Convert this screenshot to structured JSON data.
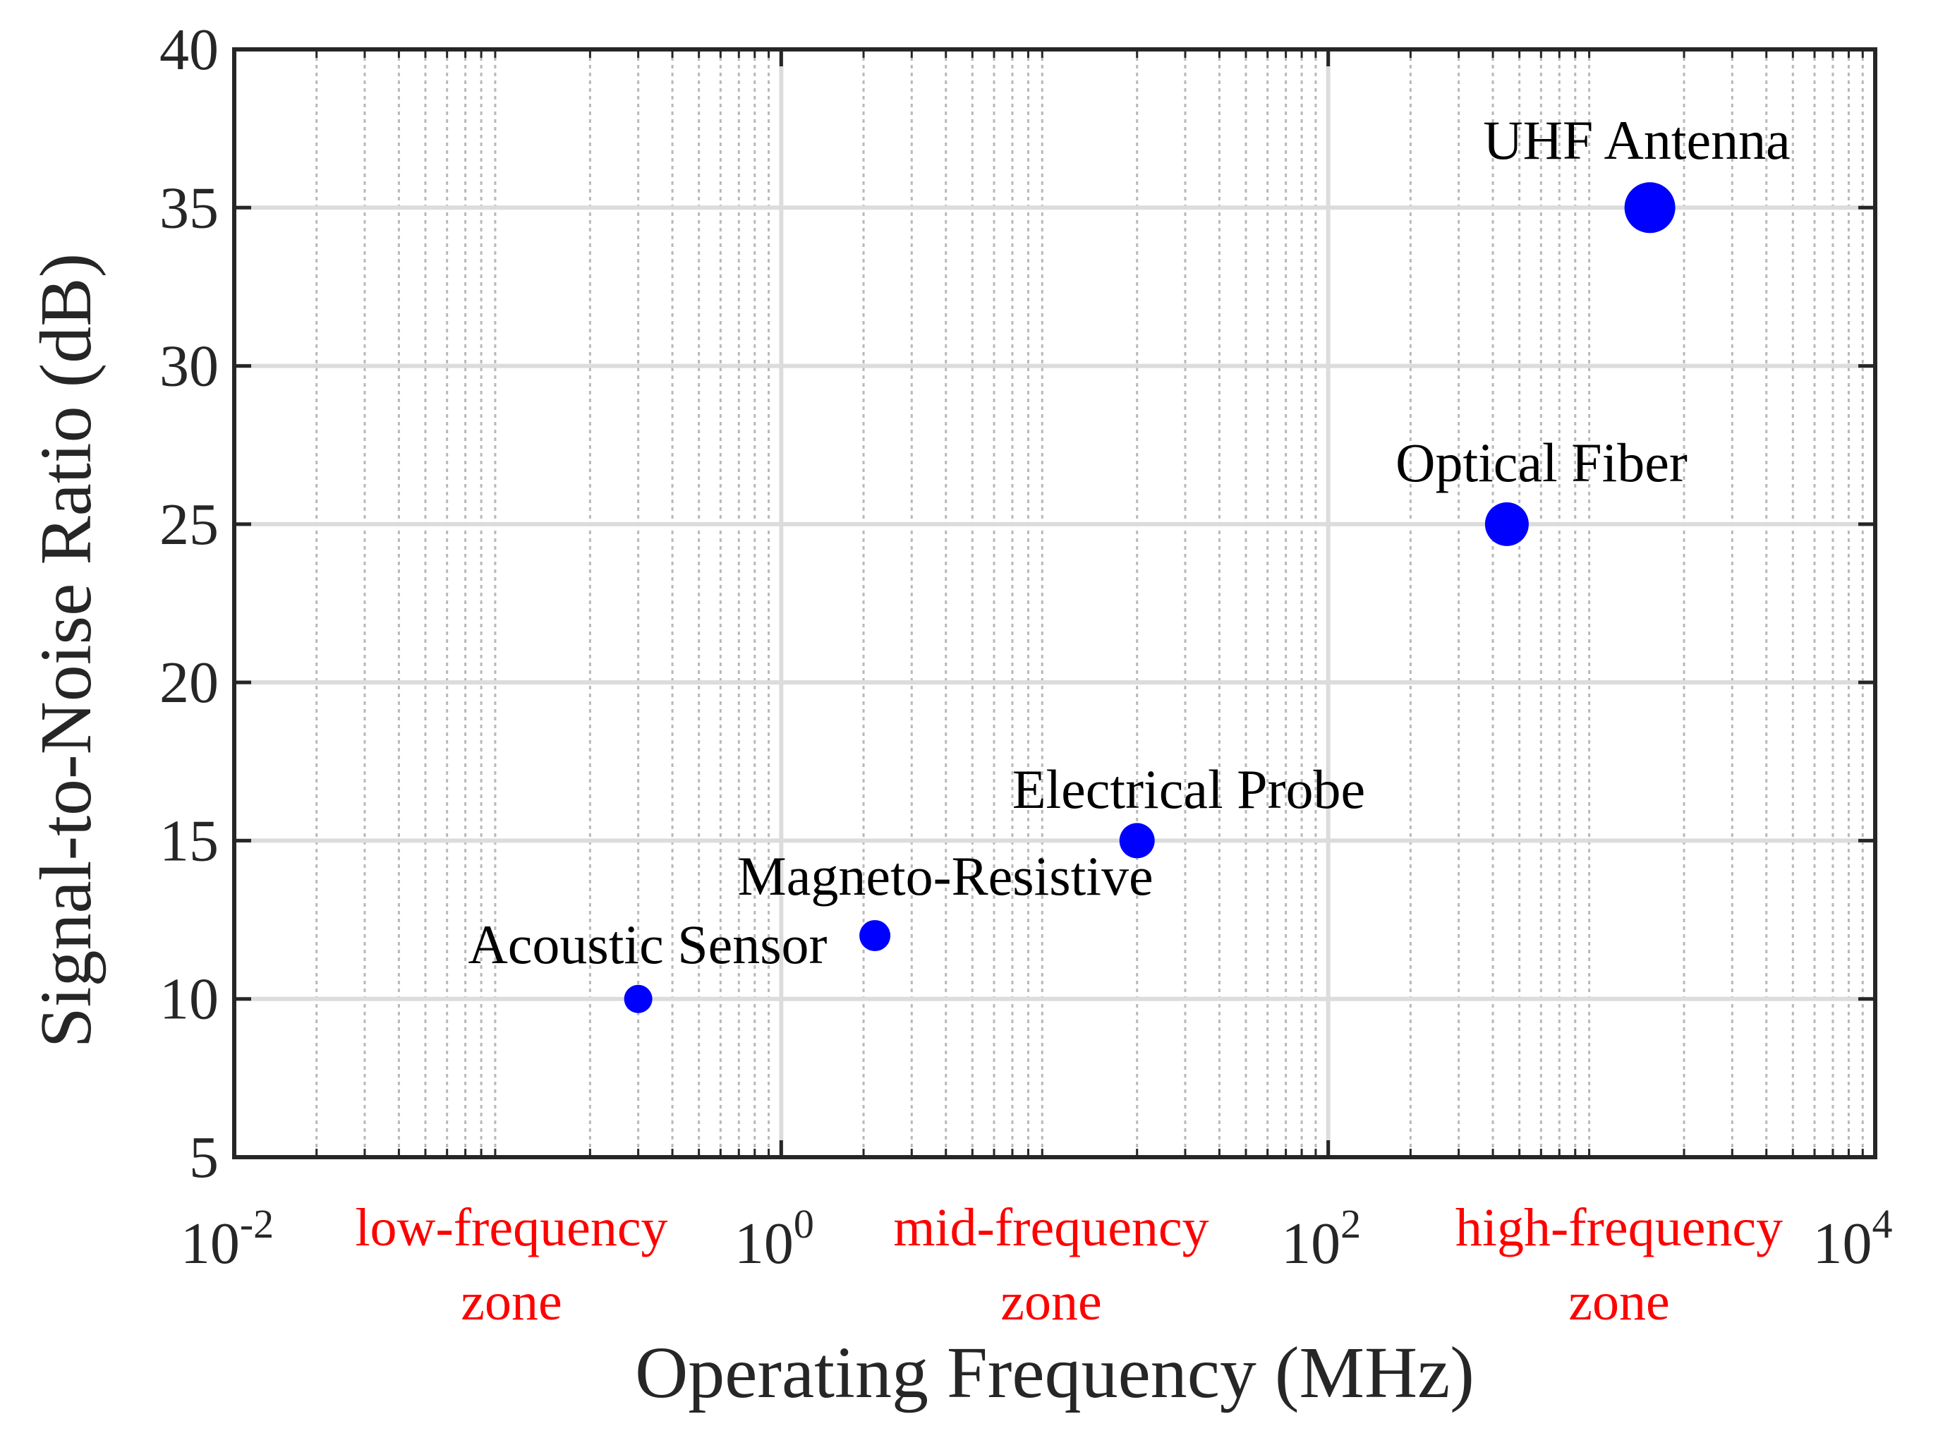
{
  "chart_data": {
    "type": "scatter",
    "title": "",
    "xlabel": "Operating Frequency (MHz)",
    "ylabel": "Signal-to-Noise Ratio (dB)",
    "x_scale": "log",
    "xlim": [
      0.01,
      10000
    ],
    "ylim": [
      5,
      40
    ],
    "grid": true,
    "minor_grid": true,
    "x_ticks": [
      {
        "base": "10",
        "exp": "-2",
        "value": 0.01
      },
      {
        "base": "10",
        "exp": "0",
        "value": 1
      },
      {
        "base": "10",
        "exp": "2",
        "value": 100
      },
      {
        "base": "10",
        "exp": "4",
        "value": 10000
      }
    ],
    "y_ticks": [
      "5",
      "10",
      "15",
      "20",
      "25",
      "30",
      "35",
      "40"
    ],
    "marker_color": "#0000ff",
    "points": [
      {
        "label": "Acoustic Sensor",
        "x": 0.3,
        "y": 10
      },
      {
        "label": "Magneto-Resistive",
        "x": 2.2,
        "y": 12
      },
      {
        "label": "Electrical Probe",
        "x": 20,
        "y": 15
      },
      {
        "label": "Optical Fiber",
        "x": 450,
        "y": 25
      },
      {
        "label": "UHF Antenna",
        "x": 1500,
        "y": 35
      }
    ],
    "zones": [
      {
        "line1": "low-frequency",
        "line2": "zone"
      },
      {
        "line1": "mid-frequency",
        "line2": "zone"
      },
      {
        "line1": "high-frequency",
        "line2": "zone"
      }
    ],
    "zone_color": "#ff0000"
  }
}
